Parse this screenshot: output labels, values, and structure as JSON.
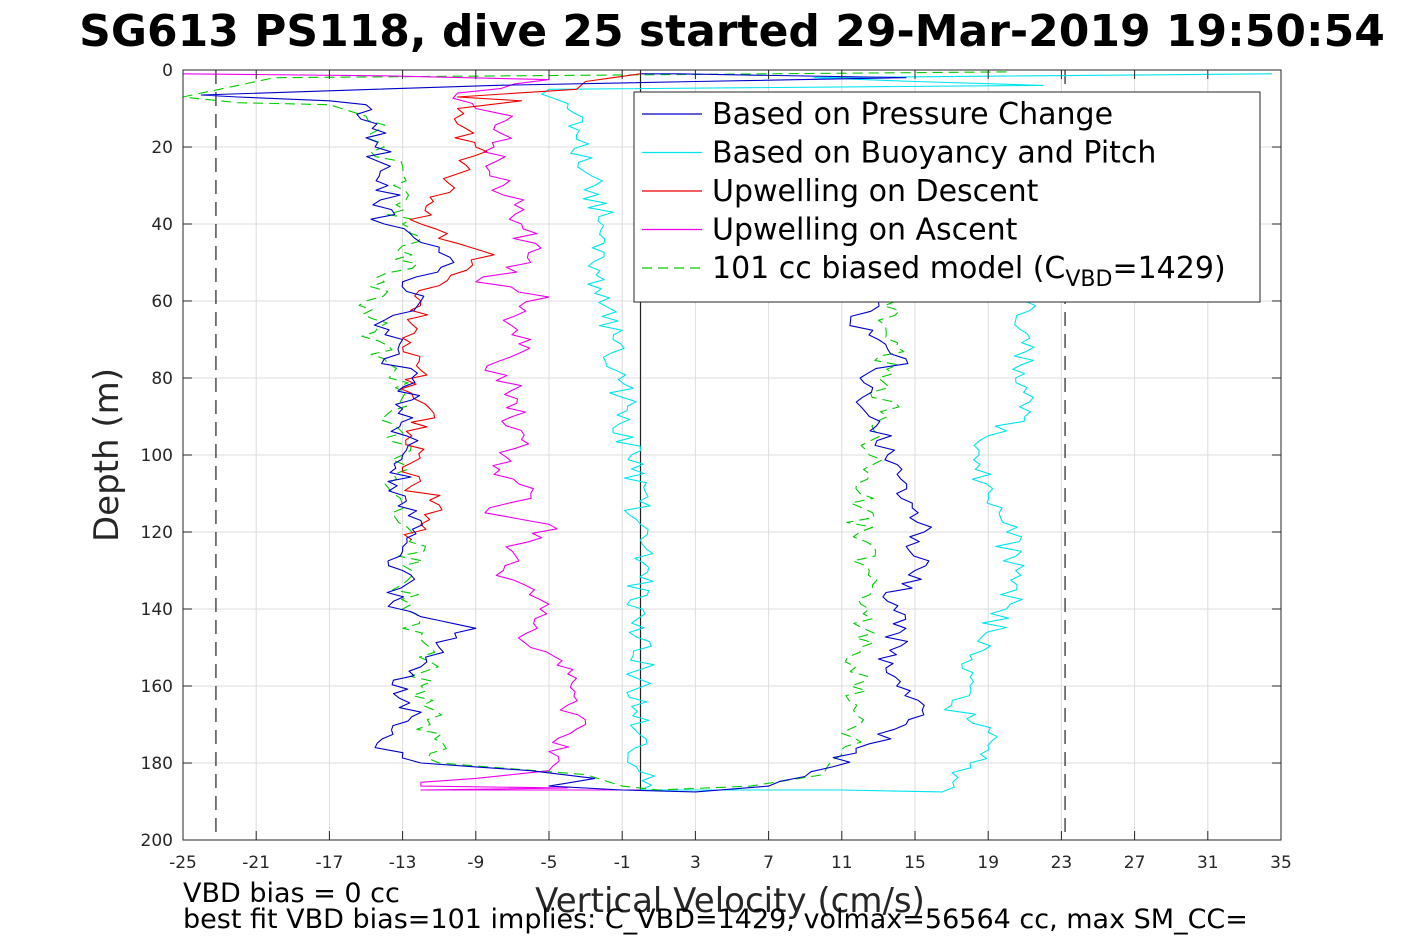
{
  "chart_data": {
    "type": "line",
    "title": "SG613 PS118, dive 25 started 29-Mar-2019 19:50:54",
    "xlabel": "Vertical Velocity (cm/s)",
    "ylabel": "Depth (m)",
    "xlim": [
      -25,
      35
    ],
    "ylim": [
      0,
      200
    ],
    "y_reversed": true,
    "grid": true,
    "xticks": [
      -25,
      -21,
      -17,
      -13,
      -9,
      -5,
      -1,
      3,
      7,
      11,
      15,
      19,
      23,
      27,
      31,
      35
    ],
    "yticks": [
      0,
      20,
      40,
      60,
      80,
      100,
      120,
      140,
      160,
      180,
      200
    ],
    "reference_lines": {
      "vertical_solid_x": 0,
      "vertical_dashed_x": [
        -23.2,
        23.2
      ],
      "bottom_depth": 187
    },
    "legend": {
      "position": "top-right",
      "entries": [
        {
          "label": "Based on Pressure Change",
          "color": "#0000cc",
          "style": "solid"
        },
        {
          "label": "Based on Buoyancy and Pitch",
          "color": "#00e5ee",
          "style": "solid"
        },
        {
          "label": "Upwelling on Descent",
          "color": "#ee0000",
          "style": "solid"
        },
        {
          "label": "Upwelling on Ascent",
          "color": "#ee00ee",
          "style": "solid"
        },
        {
          "label": "101 cc biased model (C",
          "sub": "VBD",
          "suffix": "=1429)",
          "color": "#00cc00",
          "style": "dashed"
        }
      ]
    },
    "series": [
      {
        "name": "Based on Pressure Change",
        "color": "#0000cc",
        "dash": "none",
        "points": [
          [
            0,
            1
          ],
          [
            2,
            1
          ],
          [
            14.5,
            2
          ],
          [
            3,
            3
          ],
          [
            -8,
            4
          ],
          [
            -24,
            6.5
          ],
          [
            -22,
            7
          ],
          [
            -17,
            8
          ],
          [
            -15,
            9
          ],
          [
            -14.4,
            14
          ],
          [
            -14.5,
            20
          ],
          [
            -13.8,
            30
          ],
          [
            -14,
            40
          ],
          [
            -11,
            46
          ],
          [
            -10.2,
            50
          ],
          [
            -13,
            55
          ],
          [
            -12,
            60
          ],
          [
            -14,
            65
          ],
          [
            -13,
            70
          ],
          [
            -14,
            75
          ],
          [
            -12.5,
            80
          ],
          [
            -13,
            88
          ],
          [
            -12.8,
            95
          ],
          [
            -13,
            100
          ],
          [
            -13.3,
            108
          ],
          [
            -12.8,
            112
          ],
          [
            -12,
            117
          ],
          [
            -13,
            125
          ],
          [
            -13,
            130
          ],
          [
            -13.5,
            138
          ],
          [
            -12,
            142
          ],
          [
            -9,
            145
          ],
          [
            -11,
            150
          ],
          [
            -12,
            155
          ],
          [
            -13.5,
            162
          ],
          [
            -12.5,
            168
          ],
          [
            -14.5,
            176
          ],
          [
            -12,
            180
          ],
          [
            -6,
            182
          ],
          [
            -2.5,
            184
          ],
          [
            -5,
            186
          ],
          [
            -1,
            187
          ],
          [
            3,
            187.5
          ],
          [
            7,
            186
          ],
          [
            10.5,
            181
          ],
          [
            12.5,
            175
          ],
          [
            14.5,
            170
          ],
          [
            15.5,
            165
          ],
          [
            14,
            160
          ],
          [
            13,
            153
          ],
          [
            14.5,
            145
          ],
          [
            13.5,
            138
          ],
          [
            15,
            130
          ],
          [
            15.5,
            120
          ],
          [
            14,
            110
          ],
          [
            13.5,
            100
          ],
          [
            12.5,
            90
          ],
          [
            12,
            80
          ],
          [
            14.5,
            75
          ],
          [
            13,
            70
          ],
          [
            11.5,
            64
          ],
          [
            13,
            60
          ]
        ]
      },
      {
        "name": "Based on Buoyancy and Pitch",
        "color": "#00e5ee",
        "dash": "none",
        "points": [
          [
            34.5,
            1
          ],
          [
            9.5,
            2
          ],
          [
            15,
            3
          ],
          [
            22,
            4
          ],
          [
            -5,
            5
          ],
          [
            -4,
            10
          ],
          [
            -3.5,
            18
          ],
          [
            -2.5,
            30
          ],
          [
            -2,
            45
          ],
          [
            -2.5,
            58
          ],
          [
            -1.5,
            70
          ],
          [
            -1,
            85
          ],
          [
            -0.5,
            100
          ],
          [
            0,
            118
          ],
          [
            0,
            122
          ],
          [
            0,
            187
          ],
          [
            11,
            187
          ],
          [
            16.5,
            187.5
          ],
          [
            18,
            180
          ],
          [
            19,
            172
          ],
          [
            17,
            165
          ],
          [
            18,
            160
          ],
          [
            18,
            152
          ],
          [
            20,
            140
          ],
          [
            20.5,
            130
          ],
          [
            20,
            120
          ],
          [
            19,
            110
          ],
          [
            18.5,
            100
          ],
          [
            19,
            95
          ],
          [
            21,
            90
          ],
          [
            20.5,
            80
          ],
          [
            21.5,
            72
          ],
          [
            20.5,
            65
          ],
          [
            21,
            60
          ]
        ]
      },
      {
        "name": "Upwelling on Descent",
        "color": "#ee0000",
        "dash": "none",
        "points": [
          [
            0,
            1
          ],
          [
            -3,
            3
          ],
          [
            -3.5,
            5
          ],
          [
            -10,
            7
          ],
          [
            -6.5,
            8
          ],
          [
            -10,
            10
          ],
          [
            -10,
            14
          ],
          [
            -9,
            20
          ],
          [
            -10,
            27
          ],
          [
            -11.5,
            33
          ],
          [
            -12,
            40
          ],
          [
            -10,
            45
          ],
          [
            -8,
            48
          ],
          [
            -9.5,
            52
          ],
          [
            -11,
            56
          ],
          [
            -12,
            60
          ],
          [
            -12.5,
            66
          ],
          [
            -13,
            72
          ],
          [
            -12,
            78
          ],
          [
            -12.5,
            84
          ],
          [
            -11.5,
            88
          ],
          [
            -12.5,
            95
          ],
          [
            -12.5,
            102
          ],
          [
            -12.5,
            108
          ],
          [
            -11,
            113
          ],
          [
            -12,
            118
          ],
          [
            -12.5,
            122
          ]
        ]
      },
      {
        "name": "Upwelling on Ascent",
        "color": "#ee00ee",
        "dash": "none",
        "points": [
          [
            -25,
            1
          ],
          [
            -14,
            1.5
          ],
          [
            -5,
            2.5
          ],
          [
            -10,
            6
          ],
          [
            -9,
            10
          ],
          [
            -7,
            12
          ],
          [
            -8,
            20
          ],
          [
            -7.5,
            30
          ],
          [
            -6.5,
            40
          ],
          [
            -6,
            50
          ],
          [
            -9,
            55
          ],
          [
            -5,
            59
          ],
          [
            -7.5,
            65
          ],
          [
            -6,
            70
          ],
          [
            -8.5,
            78
          ],
          [
            -6.5,
            82
          ],
          [
            -7,
            90
          ],
          [
            -6.5,
            96
          ],
          [
            -8,
            105
          ],
          [
            -6,
            110
          ],
          [
            -8.5,
            115
          ],
          [
            -5,
            118
          ],
          [
            -7,
            125
          ],
          [
            -7.5,
            130
          ],
          [
            -5.5,
            140
          ],
          [
            -6,
            150
          ],
          [
            -3.5,
            158
          ],
          [
            -4,
            165
          ],
          [
            -3,
            170
          ],
          [
            -5,
            177
          ],
          [
            -5,
            182
          ],
          [
            -9,
            184
          ],
          [
            -12,
            185
          ],
          [
            -12,
            186
          ],
          [
            -4,
            186.5
          ],
          [
            -12,
            187
          ],
          [
            0,
            187
          ]
        ]
      },
      {
        "name": "101 cc biased model (C_VBD=1429)",
        "color": "#00cc00",
        "dash": "10,6",
        "points": [
          [
            20,
            0.5
          ],
          [
            -20,
            2
          ],
          [
            -23,
            5
          ],
          [
            -25,
            7
          ],
          [
            -22,
            8.5
          ],
          [
            -17,
            9
          ],
          [
            -15,
            12
          ],
          [
            -14,
            20
          ],
          [
            -13.5,
            30
          ],
          [
            -13,
            40
          ],
          [
            -12.5,
            48
          ],
          [
            -14,
            55
          ],
          [
            -15,
            60
          ],
          [
            -14.5,
            68
          ],
          [
            -14,
            75
          ],
          [
            -13,
            85
          ],
          [
            -13.5,
            92
          ],
          [
            -13,
            100
          ],
          [
            -13.5,
            110
          ],
          [
            -12.5,
            120
          ],
          [
            -12.5,
            130
          ],
          [
            -13,
            140
          ],
          [
            -11.5,
            150
          ],
          [
            -12,
            160
          ],
          [
            -11.5,
            170
          ],
          [
            -11,
            180
          ],
          [
            -3,
            183
          ],
          [
            -1,
            186
          ],
          [
            1,
            187
          ],
          [
            6,
            186
          ],
          [
            10,
            183
          ],
          [
            11,
            178
          ],
          [
            12,
            170
          ],
          [
            11.5,
            160
          ],
          [
            12,
            150
          ],
          [
            12.5,
            140
          ],
          [
            12.5,
            130
          ],
          [
            12,
            120
          ],
          [
            12,
            110
          ],
          [
            12.5,
            100
          ],
          [
            13.5,
            90
          ],
          [
            13,
            80
          ],
          [
            14,
            72
          ],
          [
            13,
            65
          ],
          [
            14,
            60
          ]
        ]
      }
    ]
  },
  "footnotes": {
    "line1": "VBD bias = 0 cc",
    "line2": "best fit VBD bias=101 implies: C_VBD=1429, volmax=56564 cc, max SM_CC="
  }
}
